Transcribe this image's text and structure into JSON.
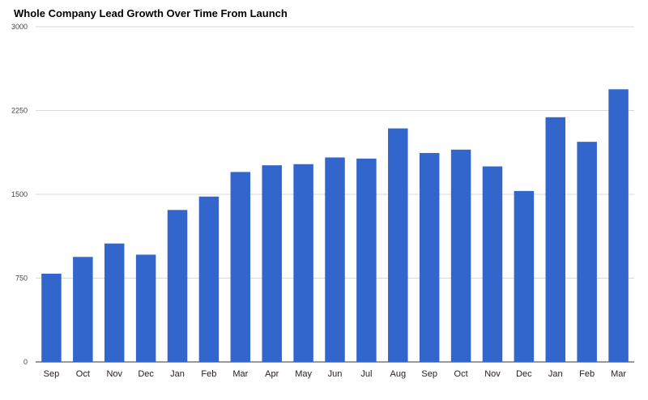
{
  "chart_data": {
    "type": "bar",
    "title": "Whole Company Lead Growth Over Time From Launch",
    "xlabel": "",
    "ylabel": "",
    "categories": [
      "Sep",
      "Oct",
      "Nov",
      "Dec",
      "Jan",
      "Feb",
      "Mar",
      "Apr",
      "May",
      "Jun",
      "Jul",
      "Aug",
      "Sep",
      "Oct",
      "Nov",
      "Dec",
      "Jan",
      "Feb",
      "Mar"
    ],
    "values": [
      790,
      940,
      1060,
      960,
      1360,
      1480,
      1700,
      1760,
      1770,
      1830,
      1820,
      2090,
      1870,
      1900,
      1750,
      1530,
      2190,
      1970,
      2440
    ],
    "ylim": [
      0,
      3000
    ],
    "yticks": [
      0,
      750,
      1500,
      2250,
      3000
    ],
    "ytick_labels": [
      "0",
      "750",
      "1500",
      "2250",
      "3000"
    ],
    "grid": true,
    "legend": "none",
    "bar_color": "#3366cc"
  }
}
